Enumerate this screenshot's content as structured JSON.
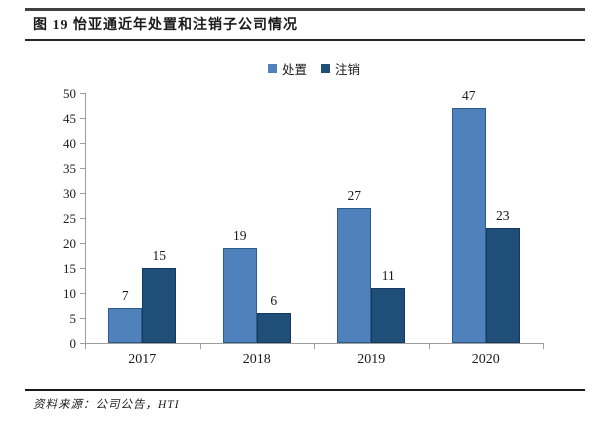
{
  "figure": {
    "title": "图 19 怡亚通近年处置和注销子公司情况",
    "source": "资料来源：公司公告，HTI"
  },
  "colors": {
    "series1": "#4F81BD",
    "series1_border": "#2E5C8A",
    "series2": "#1F4E79",
    "series2_border": "#17375E",
    "axis": "#9e9e9e"
  },
  "chart_data": {
    "type": "bar",
    "categories": [
      "2017",
      "2018",
      "2019",
      "2020"
    ],
    "series": [
      {
        "name": "处置",
        "color": "#4F81BD",
        "values": [
          7,
          19,
          27,
          47
        ]
      },
      {
        "name": "注销",
        "color": "#1F4E79",
        "values": [
          15,
          6,
          11,
          23
        ]
      }
    ],
    "title": "图 19 怡亚通近年处置和注销子公司情况",
    "xlabel": "",
    "ylabel": "",
    "ylim": [
      0,
      50
    ],
    "ytick_step": 5,
    "yticks": [
      0,
      5,
      10,
      15,
      20,
      25,
      30,
      35,
      40,
      45,
      50
    ],
    "grid": false,
    "legend_position": "top-center",
    "bar_labels_shown": true
  }
}
